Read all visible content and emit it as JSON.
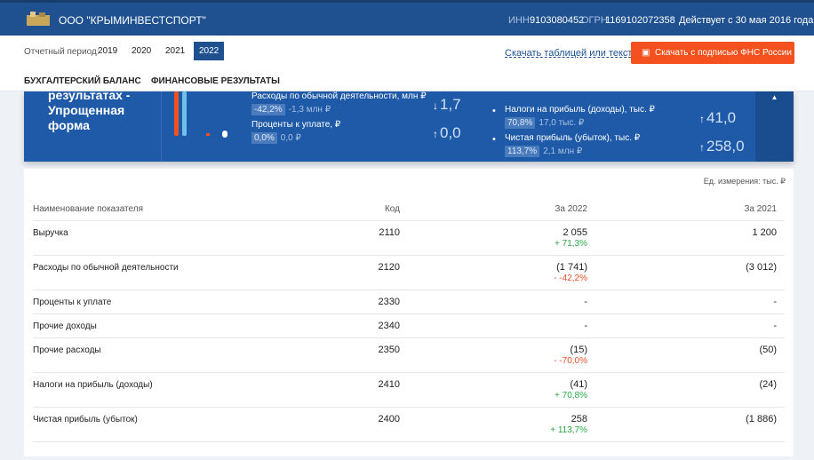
{
  "header": {
    "company": "ООО \"КРЫМИНВЕСТСПОРТ\"",
    "inn_label": "ИНН",
    "inn": "9103080452",
    "ogrn_label": "ОГРН",
    "ogrn": "1169102072358",
    "status": "Действует с 30 мая 2016 года"
  },
  "period": {
    "label": "Отчетный период:",
    "years": [
      "2019",
      "2020",
      "2021",
      "2022"
    ],
    "download_table": "Скачать таблицей или текстом",
    "download_signed": "Скачать с подписью ФНС России"
  },
  "tabs": [
    "БУХГАЛТЕРСКИЙ БАЛАНС",
    "ФИНАНСОВЫЕ РЕЗУЛЬТАТЫ"
  ],
  "summary": {
    "title": "результатах - Упрощенная форма",
    "items_left": [
      {
        "label": "Расходы по обычной деятельности, млн ₽",
        "change": "-42,2%",
        "delta": "-1,3 млн ₽",
        "value": "1,7"
      },
      {
        "label": "Проценты к уплате, ₽",
        "change": "0,0%",
        "delta": "0,0 ₽",
        "value": "0,0"
      }
    ],
    "items_right": [
      {
        "label": "Налоги на прибыль (доходы), тыс. ₽",
        "change": "70,8%",
        "delta": "17,0 тыс. ₽",
        "value": "41,0"
      },
      {
        "label": "Чистая прибыль (убыток), тыс. ₽",
        "change": "113,7%",
        "delta": "2,1 млн ₽",
        "value": "258,0"
      }
    ]
  },
  "table": {
    "unit": "Ед. измерения: тыс. ₽",
    "columns": [
      "Наименование показателя",
      "Код",
      "За 2022",
      "За 2021"
    ],
    "rows": [
      {
        "name": "Выручка",
        "code": "2110",
        "v2022": "2 055",
        "change": "+ 71,3%",
        "v2021": "1 200"
      },
      {
        "name": "Расходы по обычной деятельности",
        "code": "2120",
        "v2022": "(1 741)",
        "change": "- -42,2%",
        "v2021": "(3 012)"
      },
      {
        "name": "Проценты к уплате",
        "code": "2330",
        "v2022": "-",
        "v2021": "-"
      },
      {
        "name": "Прочие доходы",
        "code": "2340",
        "v2022": "-",
        "v2021": "-"
      },
      {
        "name": "Прочие расходы",
        "code": "2350",
        "v2022": "(15)",
        "change": "- -70,0%",
        "v2021": "(50)"
      },
      {
        "name": "Налоги на прибыль (доходы)",
        "code": "2410",
        "v2022": "(41)",
        "change": "+ 70,8%",
        "v2021": "(24)"
      },
      {
        "name": "Чистая прибыль (убыток)",
        "code": "2400",
        "v2022": "258",
        "change": "+ 113,7%",
        "v2021": "(1 886)"
      }
    ]
  }
}
